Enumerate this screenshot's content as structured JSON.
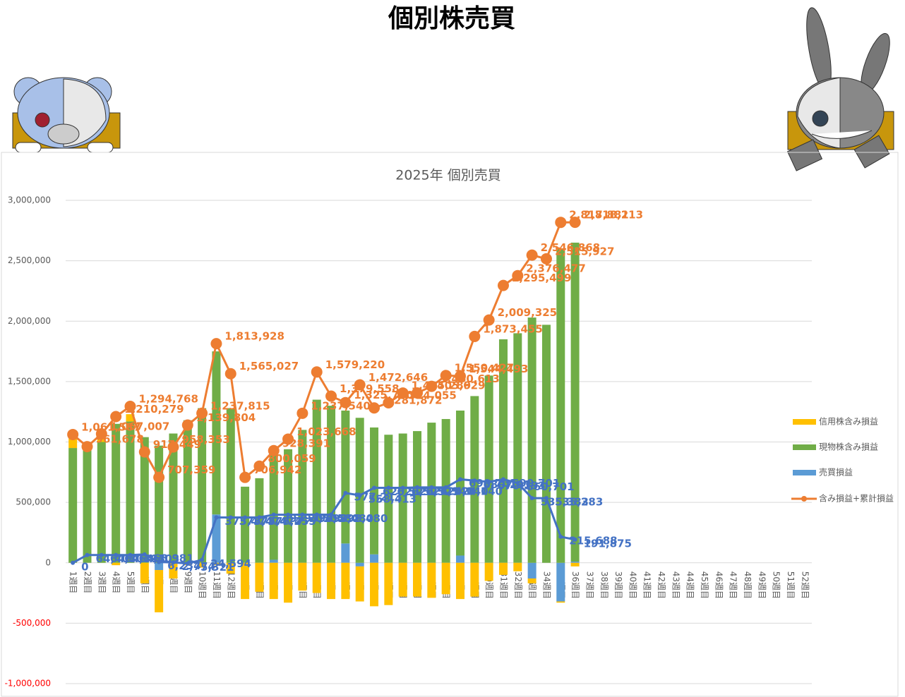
{
  "page_title": "個別株売買",
  "chart_data": {
    "type": "bar",
    "title": "2025年 個別売買",
    "categories": [
      "1週目",
      "2週目",
      "3週目",
      "4週目",
      "5週目",
      "6週目",
      "7週目",
      "8週目",
      "9週目",
      "10週目",
      "11週目",
      "12週目",
      "13週目",
      "14週目",
      "15週目",
      "16週目",
      "17週目",
      "18週目",
      "19週目",
      "20週目",
      "21週目",
      "22週目",
      "23週目",
      "24週目",
      "25週目",
      "26週目",
      "27週目",
      "28週目",
      "29週目",
      "30週目",
      "31週目",
      "32週目",
      "33週目",
      "34週目",
      "35週目",
      "36週目",
      "37週目",
      "38週目",
      "39週目",
      "40週目",
      "41週目",
      "42週目",
      "43週目",
      "44週目",
      "45週目",
      "46週目",
      "47週目",
      "48週目",
      "49週目",
      "50週目",
      "51週目",
      "52週目"
    ],
    "ylim": [
      -1000000,
      3000000
    ],
    "yticks": [
      {
        "value": -1000000,
        "label": "-1,000,000"
      },
      {
        "value": -500000,
        "label": "-500,000"
      },
      0,
      {
        "value": 500000,
        "label": "500,000"
      },
      {
        "value": 1000000,
        "label": "1,000,000"
      },
      {
        "value": 1500000,
        "label": "1,500,000"
      },
      {
        "value": 2000000,
        "label": "2,000,000"
      },
      {
        "value": 2500000,
        "label": "2,500,000"
      },
      {
        "value": 3000000,
        "label": "3,000,000"
      }
    ],
    "grid": true,
    "negative_tick_color": "#ff0000",
    "legend": "right",
    "stacked": true,
    "series": [
      {
        "name": "売買損益",
        "type": "bar",
        "color": "#5b9bd5",
        "values": [
          0,
          0,
          0,
          0,
          0,
          0,
          -60000,
          0,
          0,
          0,
          400000,
          0,
          0,
          0,
          25000,
          0,
          0,
          0,
          0,
          160000,
          -30000,
          70000,
          0,
          0,
          0,
          0,
          0,
          60000,
          0,
          0,
          0,
          0,
          -130000,
          0,
          -320000,
          10000,
          null,
          null,
          null,
          null,
          null,
          null,
          null,
          null,
          null,
          null,
          null,
          null,
          null,
          null,
          null,
          null
        ]
      },
      {
        "name": "現物株含み損益",
        "type": "bar",
        "color": "#70ad47",
        "values": [
          950000,
          930000,
          1000000,
          1150000,
          1170000,
          1040000,
          970000,
          1070000,
          1180000,
          1280000,
          1350000,
          1280000,
          630000,
          700000,
          900000,
          940000,
          1100000,
          1350000,
          1300000,
          1100000,
          1200000,
          1050000,
          1060000,
          1070000,
          1090000,
          1160000,
          1190000,
          1200000,
          1380000,
          1550000,
          1850000,
          1900000,
          2030000,
          1970000,
          2600000,
          2640000,
          null,
          null,
          null,
          null,
          null,
          null,
          null,
          null,
          null,
          null,
          null,
          null,
          null,
          null,
          null,
          null
        ]
      },
      {
        "name": "信用株含み損益",
        "type": "bar",
        "color": "#ffc000",
        "values": [
          110000,
          30000,
          60000,
          -20000,
          60000,
          -170000,
          -350000,
          -130000,
          -20000,
          -40000,
          -20000,
          -90000,
          -300000,
          -240000,
          -300000,
          -330000,
          -230000,
          -250000,
          -300000,
          -300000,
          -290000,
          -360000,
          -350000,
          -280000,
          -280000,
          -290000,
          -260000,
          -300000,
          -280000,
          -150000,
          -100000,
          -70000,
          -40000,
          0,
          -10000,
          -30000,
          null,
          null,
          null,
          null,
          null,
          null,
          null,
          null,
          null,
          null,
          null,
          null,
          null,
          null,
          null,
          null
        ]
      },
      {
        "type": "line",
        "color": "#4472c4",
        "values": [
          0,
          64403,
          64403,
          64403,
          64403,
          68981,
          6234,
          2774,
          -5321,
          24594,
          375474,
          375474,
          375474,
          376255,
          397705,
          397705,
          398480,
          398480,
          398480,
          577213,
          558413,
          620525,
          620525,
          620525,
          624140,
          624140,
          624140,
          690701,
          680193,
          670193,
          690701,
          660701,
          535383,
          535283,
          215688,
          191875,
          null,
          null,
          null,
          null,
          null,
          null,
          null,
          null,
          null,
          null,
          null,
          null,
          null,
          null,
          null,
          null
        ],
        "value_labels": [
          "0",
          "64,403",
          "64,403",
          "64,403",
          "64,403",
          "68,981",
          "6,234",
          "2,774",
          "-5,321",
          "24,594",
          "375,474",
          "375,474",
          "375,474",
          "376,255",
          "397,705",
          "397,705",
          "398,480",
          "398,480",
          "398,480",
          "577,213",
          "558,413",
          "620,525",
          "620,525",
          "620,525",
          "624,140",
          "624,140",
          "624,140",
          "690,701",
          "680,193",
          "670,193",
          "690,701",
          "660,701",
          "535,383",
          "535,283",
          "215,688",
          "191,875",
          null,
          null,
          null,
          null,
          null,
          null,
          null,
          null,
          null,
          null,
          null,
          null,
          null,
          null,
          null,
          null
        ]
      },
      {
        "name": "含み損益+累計損益",
        "type": "line",
        "color": "#ed7d31",
        "markers": true,
        "values": [
          1061587,
          961678,
          1067007,
          1210279,
          1294768,
          917449,
          707359,
          958353,
          1139804,
          1237815,
          1813928,
          1565027,
          706942,
          800059,
          928391,
          1023668,
          1237540,
          1579220,
          1379558,
          1325770,
          1472646,
          1281872,
          1324055,
          1405289,
          1405629,
          1460613,
          1550427,
          1544493,
          1873455,
          2009325,
          2295499,
          2376477,
          2546868,
          2515927,
          2817881,
          2818213,
          null,
          null,
          null,
          null,
          null,
          null,
          null,
          null,
          null,
          null,
          null,
          null,
          null,
          null,
          null,
          null
        ],
        "value_labels": [
          "1,061,587",
          "961,678",
          "1,067,007",
          "1,210,279",
          "1,294,768",
          "917,449",
          "707,359",
          "958,353",
          "1,139,804",
          "1,237,815",
          "1,813,928",
          "1,565,027",
          "706,942",
          "800,059",
          "928,391",
          "1,023,668",
          "1,237,540",
          "1,579,220",
          "1,379,558",
          "1,325,770",
          "1,472,646",
          "1,281,872",
          "1,324,055",
          "1,405,289",
          "1,405,629",
          "1,460,613",
          "1,550,427",
          "1,544,493",
          "1,873,455",
          "2,009,325",
          "2,295,499",
          "2,376,477",
          "2,546,868",
          "2,515,927",
          "2,817,881",
          "2,818,213",
          null,
          null,
          null,
          null,
          null,
          null,
          null,
          null,
          null,
          null,
          null,
          null,
          null,
          null,
          null,
          null
        ]
      }
    ]
  }
}
